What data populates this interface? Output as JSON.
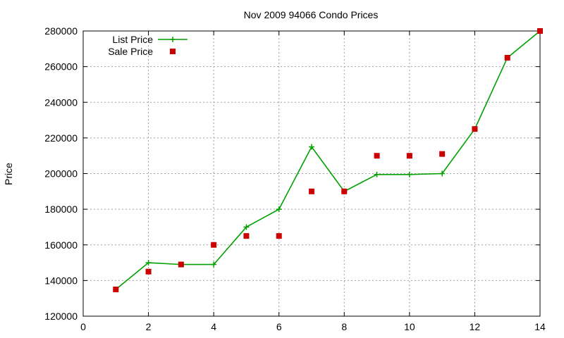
{
  "chart_data": {
    "type": "line",
    "title": "Nov 2009 94066 Condo Prices",
    "xlabel": "",
    "ylabel": "Price",
    "xlim": [
      0,
      14
    ],
    "ylim": [
      120000,
      280000
    ],
    "x_ticks": [
      "0",
      "2",
      "4",
      "6",
      "8",
      "10",
      "12",
      "14"
    ],
    "y_ticks": [
      "120000",
      "140000",
      "160000",
      "180000",
      "200000",
      "220000",
      "240000",
      "260000",
      "280000"
    ],
    "grid": true,
    "legend_position": "top-left",
    "series": [
      {
        "name": "List Price",
        "style": "line-with-plus-markers",
        "color": "#00a000",
        "x": [
          1,
          2,
          3,
          4,
          5,
          6,
          7,
          8,
          9,
          10,
          11,
          12,
          13,
          14
        ],
        "values": [
          135000,
          150000,
          149000,
          149000,
          170000,
          180000,
          215000,
          190000,
          199500,
          199500,
          200000,
          225000,
          265000,
          280000
        ]
      },
      {
        "name": "Sale Price",
        "style": "square-points",
        "color": "#cc0000",
        "x": [
          1,
          2,
          3,
          4,
          5,
          6,
          7,
          8,
          9,
          10,
          11,
          12,
          13,
          14
        ],
        "values": [
          135000,
          145000,
          149000,
          160000,
          165000,
          165000,
          190000,
          190000,
          210000,
          210000,
          211000,
          225000,
          265000,
          280000
        ]
      }
    ]
  }
}
